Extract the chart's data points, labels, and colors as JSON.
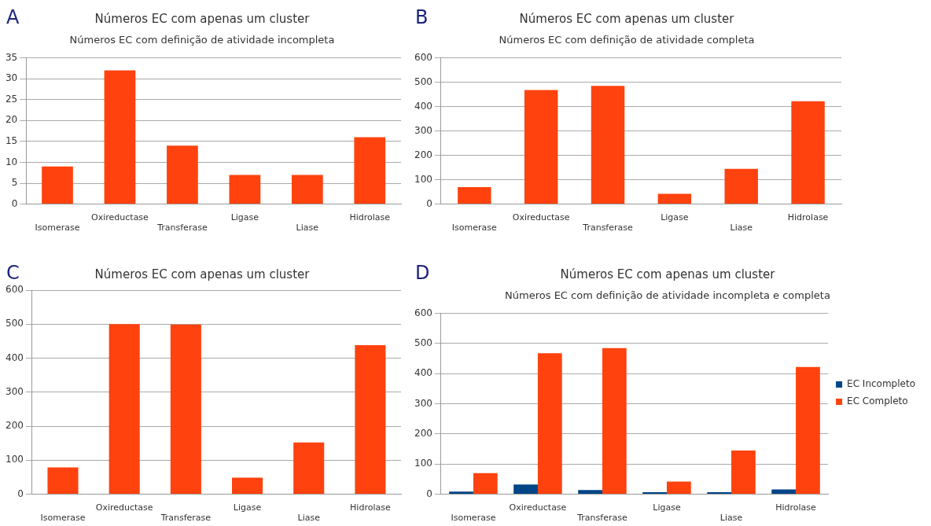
{
  "chart_data": [
    {
      "type": "bar",
      "title": "Números EC com apenas um cluster",
      "subtitle": "Números EC com definição de atividade incompleta",
      "annotations": [
        "A"
      ],
      "categories": [
        "Isomerase",
        "Oxireductase",
        "Transferase",
        "Ligase",
        "Liase",
        "Hidrolase"
      ],
      "values": [
        9,
        32,
        14,
        7,
        7,
        16
      ],
      "color": "#ff420e",
      "ylim": [
        0,
        35
      ],
      "yticks": [
        0,
        5,
        10,
        15,
        20,
        25,
        30,
        35
      ],
      "grid": "y"
    },
    {
      "type": "bar",
      "title": "Números EC com apenas um cluster",
      "subtitle": "Números EC com definição de atividade completa",
      "annotations": [
        "B"
      ],
      "categories": [
        "Isomerase",
        "Oxireductase",
        "Transferase",
        "Ligase",
        "Liase",
        "Hidrolase"
      ],
      "values": [
        70,
        468,
        485,
        42,
        145,
        422
      ],
      "color": "#ff420e",
      "ylim": [
        0,
        600
      ],
      "yticks": [
        0,
        100,
        200,
        300,
        400,
        500,
        600
      ],
      "grid": "y"
    },
    {
      "type": "bar",
      "title": "Números EC com apenas um cluster",
      "annotations": [
        "C"
      ],
      "categories": [
        "Isomerase",
        "Oxireductase",
        "Transferase",
        "Ligase",
        "Liase",
        "Hidrolase"
      ],
      "values": [
        79,
        500,
        499,
        49,
        152,
        438
      ],
      "color": "#ff420e",
      "ylim": [
        0,
        600
      ],
      "yticks": [
        0,
        100,
        200,
        300,
        400,
        500,
        600
      ],
      "grid": "y"
    },
    {
      "type": "bar",
      "title": "Números EC com apenas um cluster",
      "subtitle": "Números EC com definição de atividade incompleta e completa",
      "annotations": [
        "D"
      ],
      "categories": [
        "Isomerase",
        "Oxireductase",
        "Transferase",
        "Ligase",
        "Liase",
        "Hidrolase"
      ],
      "series": [
        {
          "name": "EC Incompleto",
          "color": "#004586",
          "values": [
            9,
            32,
            14,
            7,
            7,
            16
          ]
        },
        {
          "name": "EC Completo",
          "color": "#ff420e",
          "values": [
            70,
            468,
            485,
            42,
            145,
            422
          ]
        }
      ],
      "ylim": [
        0,
        600
      ],
      "yticks": [
        0,
        100,
        200,
        300,
        400,
        500,
        600
      ],
      "grid": "y",
      "legend": "right"
    }
  ]
}
